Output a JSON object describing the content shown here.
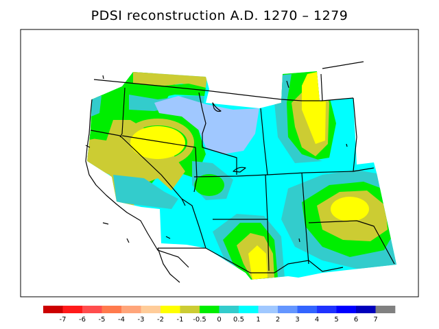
{
  "title": "PDSI reconstruction A.D. 1270 – 1279",
  "legend": {
    "colors": [
      "#cc0000",
      "#ff1a1a",
      "#ff4d4d",
      "#ff7a4d",
      "#ffa57a",
      "#ffcc99",
      "#ffff00",
      "#cccc33",
      "#00ee00",
      "#33cccc",
      "#00ffff",
      "#a0c8ff",
      "#6496ff",
      "#3264ff",
      "#1e32ff",
      "#0000ff",
      "#0000bb",
      "#808080"
    ],
    "ticks": [
      "-7",
      "-6",
      "-5",
      "-4",
      "-3",
      "-2",
      "-1",
      "-0.5",
      "0",
      "0.5",
      "1",
      "2",
      "3",
      "4",
      "5",
      "6",
      "7"
    ]
  },
  "palette": {
    "dry_yellow": "#ffff00",
    "olive": "#cccc33",
    "green": "#00ee00",
    "teal": "#33cccc",
    "cyan": "#00ffff",
    "light_blue": "#a0c8ff"
  }
}
